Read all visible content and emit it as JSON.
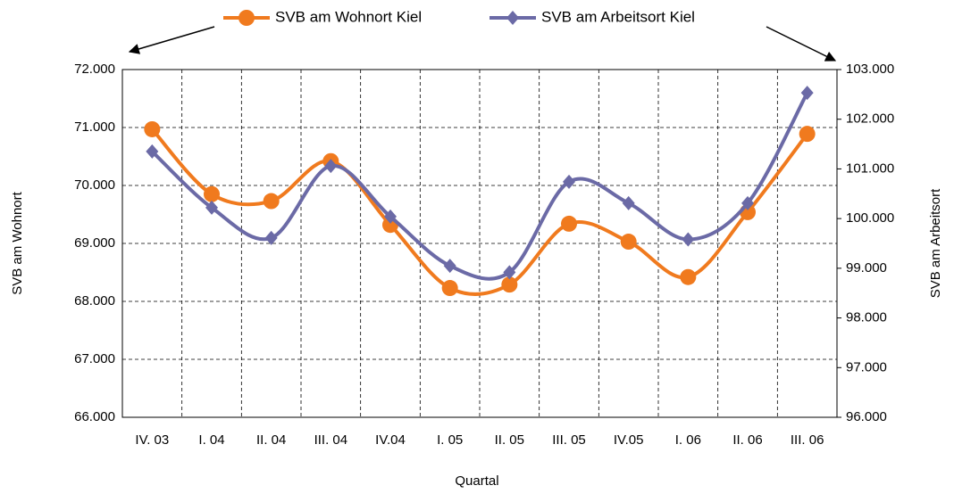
{
  "chart_data": {
    "type": "line",
    "x_label": "Quartal",
    "y_label": "SVB am Wohnort",
    "y2_label": "SVB am Arbeitsort",
    "categories": [
      "IV. 03",
      "I. 04",
      "II. 04",
      "III. 04",
      "IV.04",
      "I. 05",
      "II. 05",
      "III. 05",
      "IV.05",
      "I. 06",
      "II. 06",
      "III. 06"
    ],
    "series": [
      {
        "name": "SVB am Wohnort Kiel",
        "color": "#f07a1e",
        "marker": "circle",
        "values": [
          70970,
          69850,
          69730,
          70420,
          69320,
          68230,
          68290,
          69340,
          69030,
          68420,
          69540,
          70890
        ]
      },
      {
        "name": "SVB am Arbeitsort Kiel",
        "color": "#6b6aa6",
        "marker": "diamond",
        "axis": "y2",
        "values": [
          101350,
          100220,
          99610,
          101060,
          100040,
          99050,
          98920,
          100740,
          100310,
          99580,
          100310,
          102530
        ]
      }
    ],
    "ylim": [
      66000,
      72000
    ],
    "yticks": [
      {
        "value": 66000,
        "label": "66.000"
      },
      {
        "value": 67000,
        "label": "67.000"
      },
      {
        "value": 68000,
        "label": "68.000"
      },
      {
        "value": 69000,
        "label": "69.000"
      },
      {
        "value": 70000,
        "label": "70.000"
      },
      {
        "value": 71000,
        "label": "71.000"
      },
      {
        "value": 72000,
        "label": "72.000"
      }
    ],
    "y2lim": [
      96000,
      103000
    ],
    "y2ticks": [
      {
        "value": 96000,
        "label": "96.000"
      },
      {
        "value": 97000,
        "label": "97.000"
      },
      {
        "value": 98000,
        "label": "98.000"
      },
      {
        "value": 99000,
        "label": "99.000"
      },
      {
        "value": 100000,
        "label": "100.000"
      },
      {
        "value": 101000,
        "label": "101.000"
      },
      {
        "value": 102000,
        "label": "102.000"
      },
      {
        "value": 103000,
        "label": "103.000"
      }
    ],
    "grid": true,
    "smooth": true,
    "legend": "top"
  }
}
